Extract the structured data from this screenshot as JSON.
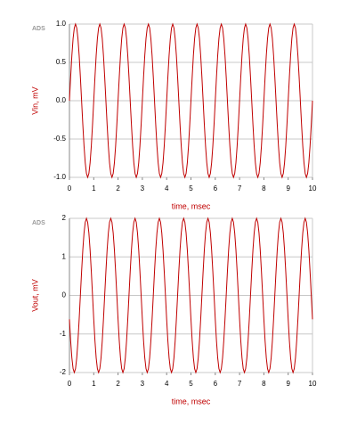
{
  "chart_data": [
    {
      "type": "line",
      "logo_text": "ADS",
      "xlabel": "time, msec",
      "ylabel": "Vin, mV",
      "x": [
        0,
        0.05,
        0.1,
        0.15,
        0.2,
        0.25,
        0.3,
        0.35,
        0.4,
        0.45,
        0.5,
        0.55,
        0.6,
        0.65,
        0.7,
        0.75,
        0.8,
        0.85,
        0.9,
        0.95,
        1,
        1.05,
        1.1,
        1.15,
        1.2,
        1.25,
        1.3,
        1.35,
        1.4,
        1.45,
        1.5,
        1.55,
        1.6,
        1.65,
        1.7,
        1.75,
        1.8,
        1.85,
        1.9,
        1.95,
        2,
        2.05,
        2.1,
        2.15,
        2.2,
        2.25,
        2.3,
        2.35,
        2.4,
        2.45,
        2.5,
        2.55,
        2.6,
        2.65,
        2.7,
        2.75,
        2.8,
        2.85,
        2.9,
        2.95,
        3,
        3.05,
        3.1,
        3.15,
        3.2,
        3.25,
        3.3,
        3.35,
        3.4,
        3.45,
        3.5,
        3.55,
        3.6,
        3.65,
        3.7,
        3.75,
        3.8,
        3.85,
        3.9,
        3.95,
        4,
        4.05,
        4.1,
        4.15,
        4.2,
        4.25,
        4.3,
        4.35,
        4.4,
        4.45,
        4.5,
        4.55,
        4.6,
        4.65,
        4.7,
        4.75,
        4.8,
        4.85,
        4.9,
        4.95,
        5,
        5.05,
        5.1,
        5.15,
        5.2,
        5.25,
        5.3,
        5.35,
        5.4,
        5.45,
        5.5,
        5.55,
        5.6,
        5.65,
        5.7,
        5.75,
        5.8,
        5.85,
        5.9,
        5.95,
        6,
        6.05,
        6.1,
        6.15,
        6.2,
        6.25,
        6.3,
        6.35,
        6.4,
        6.45,
        6.5,
        6.55,
        6.6,
        6.65,
        6.7,
        6.75,
        6.8,
        6.85,
        6.9,
        6.95,
        7,
        7.05,
        7.1,
        7.15,
        7.2,
        7.25,
        7.3,
        7.35,
        7.4,
        7.45,
        7.5,
        7.55,
        7.6,
        7.65,
        7.7,
        7.75,
        7.8,
        7.85,
        7.9,
        7.95,
        8,
        8.05,
        8.1,
        8.15,
        8.2,
        8.25,
        8.3,
        8.35,
        8.4,
        8.45,
        8.5,
        8.55,
        8.6,
        8.65,
        8.7,
        8.75,
        8.8,
        8.85,
        8.9,
        8.95,
        9,
        9.05,
        9.1,
        9.15,
        9.2,
        9.25,
        9.3,
        9.35,
        9.4,
        9.45,
        9.5,
        9.55,
        9.6,
        9.65,
        9.7,
        9.75,
        9.8,
        9.85,
        9.9,
        9.95,
        10
      ],
      "series": [
        {
          "color": "#c00000",
          "values": [
            0,
            0.31,
            0.59,
            0.81,
            0.95,
            1,
            0.95,
            0.81,
            0.59,
            0.31,
            0,
            -0.31,
            -0.59,
            -0.81,
            -0.95,
            -1,
            -0.95,
            -0.81,
            -0.59,
            -0.31,
            0,
            0.31,
            0.59,
            0.81,
            0.95,
            1,
            0.95,
            0.81,
            0.59,
            0.31,
            0,
            -0.31,
            -0.59,
            -0.81,
            -0.95,
            -1,
            -0.95,
            -0.81,
            -0.59,
            -0.31,
            0,
            0.31,
            0.59,
            0.81,
            0.95,
            1,
            0.95,
            0.81,
            0.59,
            0.31,
            0,
            -0.31,
            -0.59,
            -0.81,
            -0.95,
            -1,
            -0.95,
            -0.81,
            -0.59,
            -0.31,
            0,
            0.31,
            0.59,
            0.81,
            0.95,
            1,
            0.95,
            0.81,
            0.59,
            0.31,
            0,
            -0.31,
            -0.59,
            -0.81,
            -0.95,
            -1,
            -0.95,
            -0.81,
            -0.59,
            -0.31,
            0,
            0.31,
            0.59,
            0.81,
            0.95,
            1,
            0.95,
            0.81,
            0.59,
            0.31,
            0,
            -0.31,
            -0.59,
            -0.81,
            -0.95,
            -1,
            -0.95,
            -0.81,
            -0.59,
            -0.31,
            0,
            0.31,
            0.59,
            0.81,
            0.95,
            1,
            0.95,
            0.81,
            0.59,
            0.31,
            0,
            -0.31,
            -0.59,
            -0.81,
            -0.95,
            -1,
            -0.95,
            -0.81,
            -0.59,
            -0.31,
            0,
            0.31,
            0.59,
            0.81,
            0.95,
            1,
            0.95,
            0.81,
            0.59,
            0.31,
            0,
            -0.31,
            -0.59,
            -0.81,
            -0.95,
            -1,
            -0.95,
            -0.81,
            -0.59,
            -0.31,
            0,
            0.31,
            0.59,
            0.81,
            0.95,
            1,
            0.95,
            0.81,
            0.59,
            0.31,
            0,
            -0.31,
            -0.59,
            -0.81,
            -0.95,
            -1,
            -0.95,
            -0.81,
            -0.59,
            -0.31,
            0,
            0.31,
            0.59,
            0.81,
            0.95,
            1,
            0.95,
            0.81,
            0.59,
            0.31,
            0,
            -0.31,
            -0.59,
            -0.81,
            -0.95,
            -1,
            -0.95,
            -0.81,
            -0.59,
            -0.31,
            0,
            0.31,
            0.59,
            0.81,
            0.95,
            1,
            0.95,
            0.81,
            0.59,
            0.31,
            0,
            -0.31,
            -0.59,
            -0.81,
            -0.95,
            -1,
            -0.95,
            -0.81,
            -0.59,
            -0.31,
            0
          ]
        }
      ],
      "xlim": [
        0,
        10
      ],
      "xticks": [
        0,
        1,
        2,
        3,
        4,
        5,
        6,
        7,
        8,
        9,
        10
      ],
      "ylim": [
        -1,
        1
      ],
      "yticks": [
        {
          "value": -1,
          "label": "-1.0"
        },
        {
          "value": -0.5,
          "label": "-0.5"
        },
        {
          "value": 0,
          "label": "0.0"
        },
        {
          "value": 0.5,
          "label": "0.5"
        },
        {
          "value": 1,
          "label": "1.0"
        }
      ],
      "grid": true
    },
    {
      "type": "line",
      "logo_text": "ADS",
      "xlabel": "time, msec",
      "ylabel": "Vout, mV",
      "x": [
        0,
        0.05,
        0.1,
        0.15,
        0.2,
        0.25,
        0.3,
        0.35,
        0.4,
        0.45,
        0.5,
        0.55,
        0.6,
        0.65,
        0.7,
        0.75,
        0.8,
        0.85,
        0.9,
        0.95,
        1,
        1.05,
        1.1,
        1.15,
        1.2,
        1.25,
        1.3,
        1.35,
        1.4,
        1.45,
        1.5,
        1.55,
        1.6,
        1.65,
        1.7,
        1.75,
        1.8,
        1.85,
        1.9,
        1.95,
        2,
        2.05,
        2.1,
        2.15,
        2.2,
        2.25,
        2.3,
        2.35,
        2.4,
        2.45,
        2.5,
        2.55,
        2.6,
        2.65,
        2.7,
        2.75,
        2.8,
        2.85,
        2.9,
        2.95,
        3,
        3.05,
        3.1,
        3.15,
        3.2,
        3.25,
        3.3,
        3.35,
        3.4,
        3.45,
        3.5,
        3.55,
        3.6,
        3.65,
        3.7,
        3.75,
        3.8,
        3.85,
        3.9,
        3.95,
        4,
        4.05,
        4.1,
        4.15,
        4.2,
        4.25,
        4.3,
        4.35,
        4.4,
        4.45,
        4.5,
        4.55,
        4.6,
        4.65,
        4.7,
        4.75,
        4.8,
        4.85,
        4.9,
        4.95,
        5,
        5.05,
        5.1,
        5.15,
        5.2,
        5.25,
        5.3,
        5.35,
        5.4,
        5.45,
        5.5,
        5.55,
        5.6,
        5.65,
        5.7,
        5.75,
        5.8,
        5.85,
        5.9,
        5.95,
        6,
        6.05,
        6.1,
        6.15,
        6.2,
        6.25,
        6.3,
        6.35,
        6.4,
        6.45,
        6.5,
        6.55,
        6.6,
        6.65,
        6.7,
        6.75,
        6.8,
        6.85,
        6.9,
        6.95,
        7,
        7.05,
        7.1,
        7.15,
        7.2,
        7.25,
        7.3,
        7.35,
        7.4,
        7.45,
        7.5,
        7.55,
        7.6,
        7.65,
        7.7,
        7.75,
        7.8,
        7.85,
        7.9,
        7.95,
        8,
        8.05,
        8.1,
        8.15,
        8.2,
        8.25,
        8.3,
        8.35,
        8.4,
        8.45,
        8.5,
        8.55,
        8.6,
        8.65,
        8.7,
        8.75,
        8.8,
        8.85,
        8.9,
        8.95,
        9,
        9.05,
        9.1,
        9.15,
        9.2,
        9.25,
        9.3,
        9.35,
        9.4,
        9.45,
        9.5,
        9.55,
        9.6,
        9.65,
        9.7,
        9.75,
        9.8,
        9.85,
        9.9,
        9.95,
        10
      ],
      "series": [
        {
          "color": "#c00000",
          "values": [
            -0.62,
            -1.18,
            -1.62,
            -1.9,
            -2,
            -1.9,
            -1.62,
            -1.18,
            -0.62,
            0,
            0.62,
            1.18,
            1.62,
            1.9,
            2,
            1.9,
            1.62,
            1.18,
            0.62,
            0,
            -0.62,
            -1.18,
            -1.62,
            -1.9,
            -2,
            -1.9,
            -1.62,
            -1.18,
            -0.62,
            0,
            0.62,
            1.18,
            1.62,
            1.9,
            2,
            1.9,
            1.62,
            1.18,
            0.62,
            0,
            -0.62,
            -1.18,
            -1.62,
            -1.9,
            -2,
            -1.9,
            -1.62,
            -1.18,
            -0.62,
            0,
            0.62,
            1.18,
            1.62,
            1.9,
            2,
            1.9,
            1.62,
            1.18,
            0.62,
            0,
            -0.62,
            -1.18,
            -1.62,
            -1.9,
            -2,
            -1.9,
            -1.62,
            -1.18,
            -0.62,
            0,
            0.62,
            1.18,
            1.62,
            1.9,
            2,
            1.9,
            1.62,
            1.18,
            0.62,
            0,
            -0.62,
            -1.18,
            -1.62,
            -1.9,
            -2,
            -1.9,
            -1.62,
            -1.18,
            -0.62,
            0,
            0.62,
            1.18,
            1.62,
            1.9,
            2,
            1.9,
            1.62,
            1.18,
            0.62,
            0,
            -0.62,
            -1.18,
            -1.62,
            -1.9,
            -2,
            -1.9,
            -1.62,
            -1.18,
            -0.62,
            0,
            0.62,
            1.18,
            1.62,
            1.9,
            2,
            1.9,
            1.62,
            1.18,
            0.62,
            0,
            -0.62,
            -1.18,
            -1.62,
            -1.9,
            -2,
            -1.9,
            -1.62,
            -1.18,
            -0.62,
            0,
            0.62,
            1.18,
            1.62,
            1.9,
            2,
            1.9,
            1.62,
            1.18,
            0.62,
            0,
            -0.62,
            -1.18,
            -1.62,
            -1.9,
            -2,
            -1.9,
            -1.62,
            -1.18,
            -0.62,
            0,
            0.62,
            1.18,
            1.62,
            1.9,
            2,
            1.9,
            1.62,
            1.18,
            0.62,
            0,
            -0.62,
            -1.18,
            -1.62,
            -1.9,
            -2,
            -1.9,
            -1.62,
            -1.18,
            -0.62,
            0,
            0.62,
            1.18,
            1.62,
            1.9,
            2,
            1.9,
            1.62,
            1.18,
            0.62,
            0,
            -0.62,
            -1.18,
            -1.62,
            -1.9,
            -2,
            -1.9,
            -1.62,
            -1.18,
            -0.62,
            0,
            0.62,
            1.18,
            1.62,
            1.9,
            2,
            1.9,
            1.62,
            1.18,
            0.62,
            0,
            -0.62
          ]
        }
      ],
      "xlim": [
        0,
        10
      ],
      "xticks": [
        0,
        1,
        2,
        3,
        4,
        5,
        6,
        7,
        8,
        9,
        10
      ],
      "ylim": [
        -2,
        2
      ],
      "yticks": [
        -2,
        -1,
        0,
        1,
        2
      ],
      "grid": true
    }
  ]
}
